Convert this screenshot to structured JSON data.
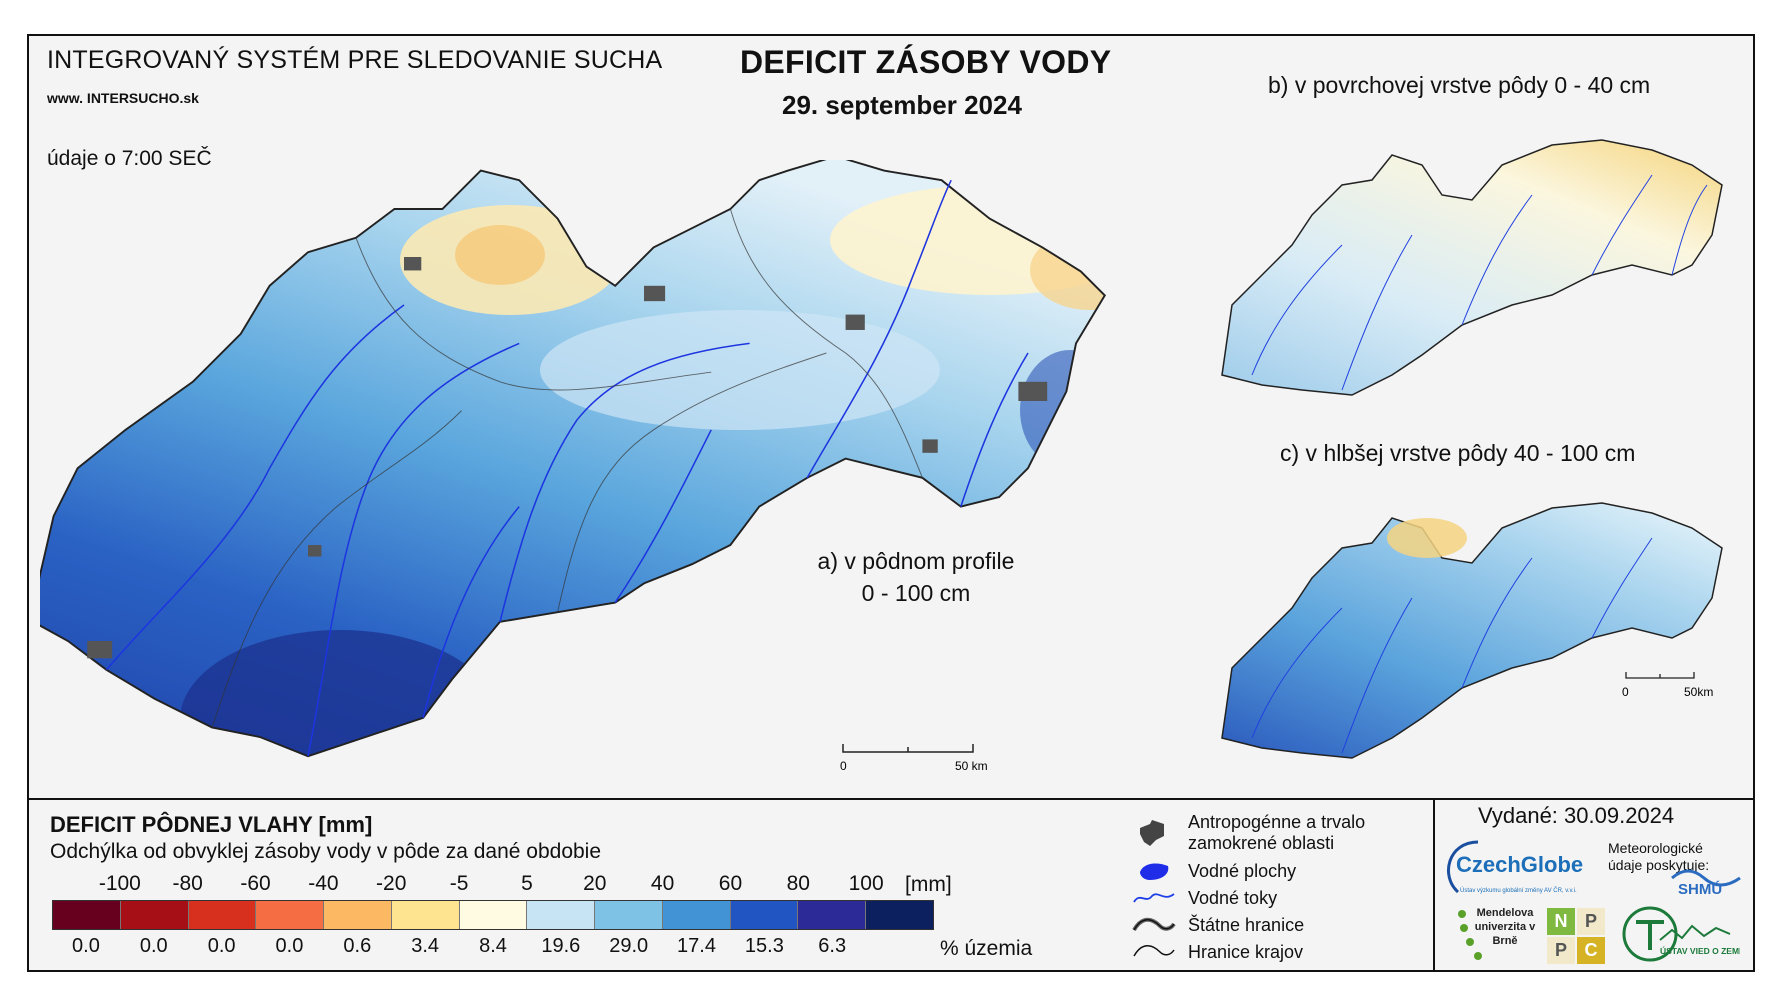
{
  "header": {
    "system_title": "INTEGROVANÝ SYSTÉM PRE SLEDOVANIE SUCHA",
    "website": "www. INTERSUCHO.sk",
    "time_note": "údaje o 7:00 SEČ",
    "main_title": "DEFICIT ZÁSOBY VODY",
    "date": "29. september 2024"
  },
  "maps": {
    "a_label_line1": "a) v pôdnom profile",
    "a_label_line2": "0 - 100 cm",
    "b_label": "b) v povrchovej vrstve pôdy 0 - 40 cm",
    "c_label": "c) v hlbšej vrstve pôdy 40 - 100 cm",
    "scale_main": {
      "zero": "0",
      "end": "50 km"
    },
    "scale_small": {
      "zero": "0",
      "end": "50km"
    }
  },
  "legend": {
    "title": "DEFICIT PÔDNEJ VLAHY [mm]",
    "subtitle": "Odchýlka od obvyklej zásoby vody v pôde za dané obdobie",
    "unit": "[mm]",
    "ticks": [
      "-100",
      "-80",
      "-60",
      "-40",
      "-20",
      "-5",
      "5",
      "20",
      "40",
      "60",
      "80",
      "100"
    ],
    "classes": [
      {
        "color": "#67001f",
        "percent": "0.0"
      },
      {
        "color": "#a50f15",
        "percent": "0.0"
      },
      {
        "color": "#d7301f",
        "percent": "0.0"
      },
      {
        "color": "#f46d43",
        "percent": "0.0"
      },
      {
        "color": "#fdb863",
        "percent": "0.6"
      },
      {
        "color": "#fee391",
        "percent": "3.4"
      },
      {
        "color": "#fffbe2",
        "percent": "8.4"
      },
      {
        "color": "#c6e4f4",
        "percent": "19.6"
      },
      {
        "color": "#7ec3e6",
        "percent": "29.0"
      },
      {
        "color": "#4292d6",
        "percent": "17.4"
      },
      {
        "color": "#2155c2",
        "percent": "15.3"
      },
      {
        "color": "#2b2a96",
        "percent": "6.3"
      },
      {
        "color": "#0c1f5e",
        "percent": ""
      }
    ],
    "percent_label": "% územia"
  },
  "symbols": {
    "urban": "Antropogénne a trvalo zamokrené oblasti",
    "water_bodies": "Vodné plochy",
    "rivers": "Vodné toky",
    "state_border": "Štátne hranice",
    "region_border": "Hranice krajov"
  },
  "footer": {
    "issued": "Vydané: 30.09.2024",
    "czechglobe": "CzechGlobe",
    "czechglobe_sub": "Ústav výzkumu globální změny AV ČR, v.v.i.",
    "meteo_text": "Meteorologické údaje poskytuje:",
    "shmu": "SHMÚ",
    "mendel": "Mendelova univerzita v Brně",
    "nppc_letters": [
      "N",
      "P",
      "P",
      "C"
    ],
    "uvz": "ÚSTAV VIED O ZEMI"
  }
}
